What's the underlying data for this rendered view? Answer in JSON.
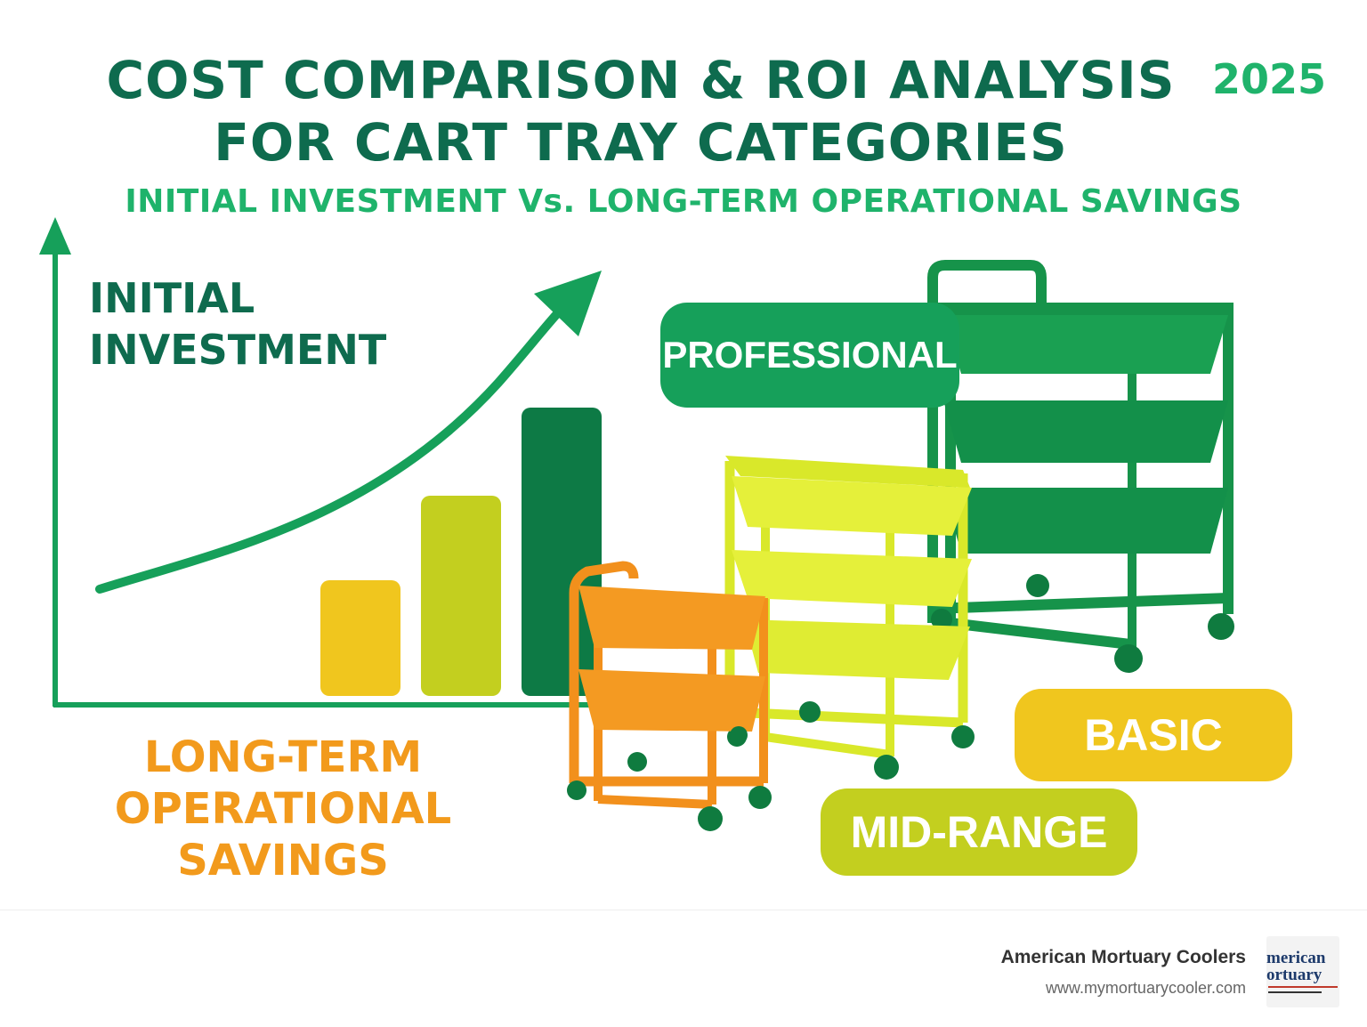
{
  "header": {
    "title_line1": "COST COMPARISON & ROI ANALYSIS",
    "title_line2": "FOR CART TRAY CATEGORIES",
    "year": "2025",
    "subtitle": "INITIAL INVESTMENT Vs. LONG-TERM OPERATIONAL SAVINGS"
  },
  "graph": {
    "label_top_line1": "INITIAL",
    "label_top_line2": "INVESTMENT",
    "label_bottom_line1": "LONG-TERM",
    "label_bottom_line2": "OPERATIONAL SAVINGS",
    "bar_levels": [
      0.3,
      0.52,
      0.75
    ]
  },
  "categories": {
    "professional": "PROFESSIONAL",
    "basic": "BASIC",
    "mid_range": "MID-RANGE"
  },
  "footer": {
    "brand_name": "American Mortuary Coolers",
    "brand_url": "www.mymortuarycooler.com",
    "logo_line1": "merican",
    "logo_line2": "ortuary"
  },
  "colors": {
    "dark_green": "#0e6b4e",
    "green": "#16a05a",
    "bright_green": "#1fb36b",
    "lime": "#c3cf1f",
    "yellow": "#f0c61e",
    "orange": "#f29a1c",
    "pro_cart": "#16934a",
    "mid_cart": "#d9e82a",
    "basic_cart": "#f2901c"
  }
}
